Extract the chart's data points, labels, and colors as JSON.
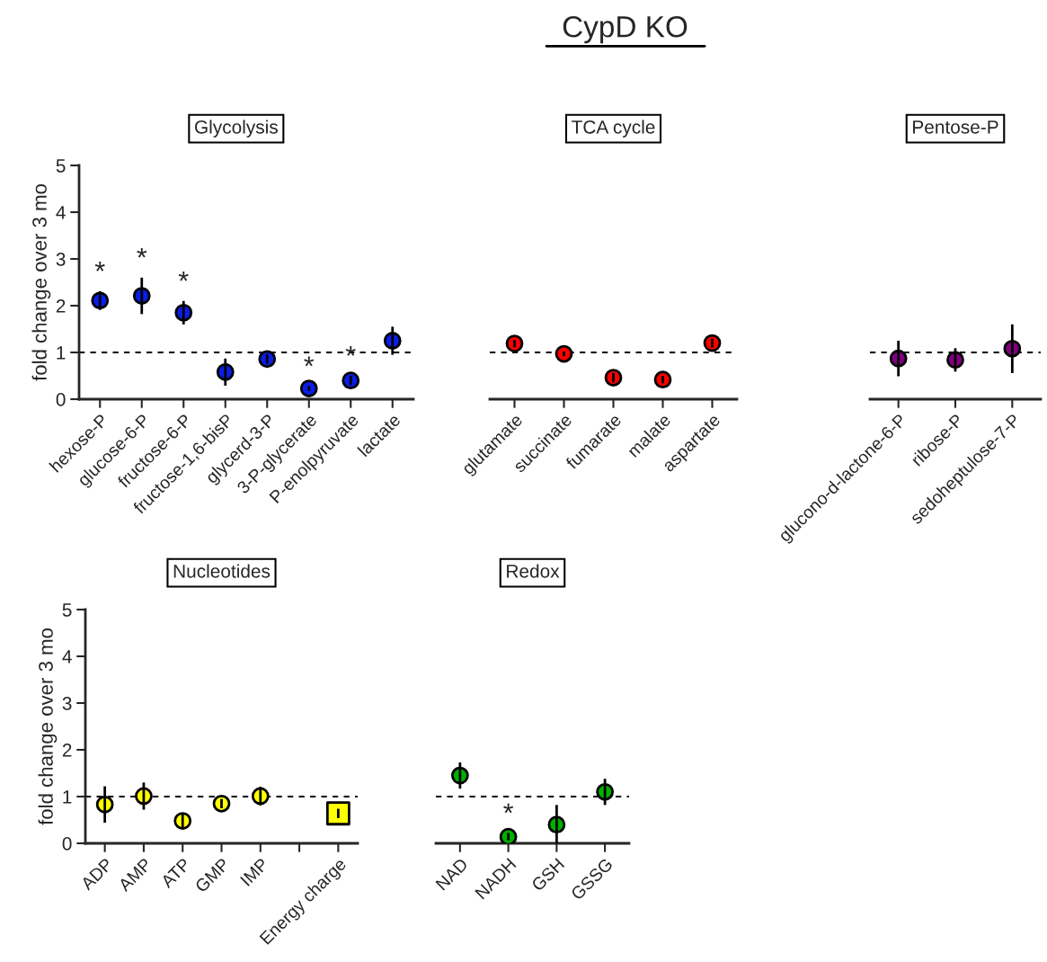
{
  "chart_data": [
    {
      "type": "scatter",
      "title": "Glycolysis",
      "ylabel": "fold change over 3 mo",
      "annotations": [
        "CypD KO"
      ],
      "categories": [
        "hexose-P",
        "glucose-6-P",
        "fructose-6-P",
        "fructose-1,6-bisP",
        "glycerd-3-P",
        "3-P-glycerate",
        "P-enolpyruvate",
        "lactate"
      ],
      "series": [
        {
          "color": "#0a1ee6",
          "marker": "circle",
          "values": [
            2.11,
            2.21,
            1.85,
            0.58,
            0.86,
            0.23,
            0.4,
            1.25
          ],
          "errors": [
            0.2,
            0.39,
            0.25,
            0.29,
            0.1,
            0.05,
            0.1,
            0.3
          ],
          "value_labels": [
            "*",
            "*",
            "*",
            null,
            null,
            "*",
            "*",
            null
          ]
        }
      ],
      "ylim": [
        0,
        5
      ],
      "yticks": [
        0,
        1,
        2,
        3,
        4,
        5
      ],
      "ref_lines": [
        {
          "axis": "y",
          "value": 1,
          "line_style": "dashed"
        }
      ],
      "grid": false,
      "legend": false
    },
    {
      "type": "scatter",
      "title": "TCA cycle",
      "categories": [
        "glutamate",
        "succinate",
        "fumarate",
        "malate",
        "aspartate"
      ],
      "series": [
        {
          "color": "#ff0000",
          "marker": "circle",
          "values": [
            1.19,
            0.97,
            0.46,
            0.42,
            1.2
          ],
          "errors": [
            0.08,
            0.05,
            0.1,
            0.08,
            0.1
          ]
        }
      ],
      "ylim": [
        0,
        5
      ],
      "tick_labels": "x",
      "ref_lines": [
        {
          "axis": "y",
          "value": 1,
          "line_style": "dashed"
        }
      ],
      "grid": false,
      "legend": false
    },
    {
      "type": "scatter",
      "title": "Pentose-P",
      "categories": [
        "glucono-d-lactone-6-P",
        "ribose-P",
        "sedoheptulose-7-P"
      ],
      "series": [
        {
          "color": "#800080",
          "marker": "circle",
          "values": [
            0.87,
            0.84,
            1.08
          ],
          "errors": [
            0.38,
            0.25,
            0.52
          ]
        }
      ],
      "ylim": [
        0,
        5
      ],
      "tick_labels": "x",
      "ref_lines": [
        {
          "axis": "y",
          "value": 1,
          "line_style": "dashed"
        }
      ],
      "grid": false,
      "legend": false
    },
    {
      "type": "scatter",
      "title": "Nucleotides",
      "ylabel": "fold change over 3 mo",
      "categories": [
        "ADP",
        "AMP",
        "ATP",
        "GMP",
        "IMP",
        null,
        "Energy charge"
      ],
      "series": [
        {
          "color": "#ffff00",
          "marker": "circle",
          "values": [
            0.83,
            1.01,
            0.48,
            0.85,
            1.01,
            null,
            null
          ],
          "errors": [
            0.39,
            0.29,
            0.15,
            0.1,
            0.2,
            null,
            null
          ]
        },
        {
          "color": "#ffff00",
          "marker": "square",
          "values": [
            null,
            null,
            null,
            null,
            null,
            null,
            0.64
          ],
          "errors": [
            null,
            null,
            null,
            null,
            null,
            null,
            0.1
          ]
        }
      ],
      "ylim": [
        0,
        5
      ],
      "yticks": [
        0,
        1,
        2,
        3,
        4,
        5
      ],
      "ref_lines": [
        {
          "axis": "y",
          "value": 1,
          "line_style": "dashed"
        }
      ],
      "grid": false,
      "legend": false
    },
    {
      "type": "scatter",
      "title": "Redox",
      "categories": [
        "NAD",
        "NADH",
        "GSH",
        "GSSG"
      ],
      "series": [
        {
          "color": "#00b000",
          "marker": "circle",
          "values": [
            1.45,
            0.14,
            0.4,
            1.1
          ],
          "errors": [
            0.28,
            0.08,
            0.42,
            0.28
          ],
          "value_labels": [
            null,
            "*",
            null,
            null
          ]
        }
      ],
      "ylim": [
        0,
        5
      ],
      "tick_labels": "x",
      "ref_lines": [
        {
          "axis": "y",
          "value": 1,
          "line_style": "dashed"
        }
      ],
      "grid": false,
      "legend": false
    }
  ]
}
